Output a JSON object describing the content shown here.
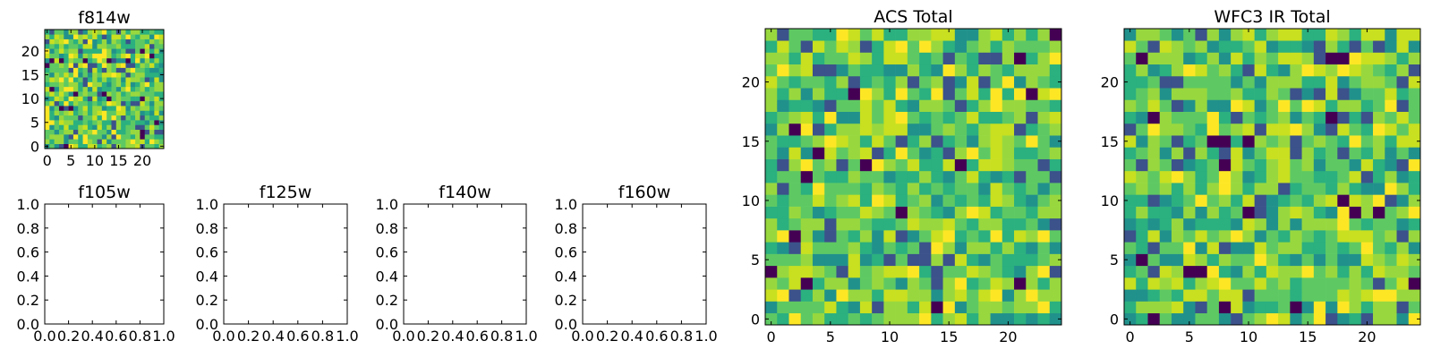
{
  "chart_data": [
    {
      "type": "heatmap",
      "title": "f814w",
      "grid_size": [
        25,
        25
      ],
      "xlim": [
        -0.5,
        24.5
      ],
      "ylim": [
        -0.5,
        24.5
      ],
      "xticks": [
        0,
        5,
        10,
        15,
        20
      ],
      "yticks": [
        0,
        5,
        10,
        15,
        20
      ],
      "xtick_labels": [
        "0",
        "5",
        "10",
        "15",
        "20"
      ],
      "ytick_labels": [
        "0",
        "5",
        "10",
        "15",
        "20"
      ],
      "colormap": "viridis",
      "seed": 814
    },
    {
      "type": "heatmap",
      "title": "f105w",
      "empty": true,
      "xlim": [
        0,
        1
      ],
      "ylim": [
        0,
        1
      ],
      "xtick_labels": [
        "0.0",
        "0.2",
        "0.4",
        "0.6",
        "0.8",
        "1.0"
      ],
      "ytick_labels": [
        "0.0",
        "0.2",
        "0.4",
        "0.6",
        "0.8",
        "1.0"
      ]
    },
    {
      "type": "heatmap",
      "title": "f125w",
      "empty": true,
      "xlim": [
        0,
        1
      ],
      "ylim": [
        0,
        1
      ],
      "xtick_labels": [
        "0.0",
        "0.2",
        "0.4",
        "0.6",
        "0.8",
        "1.0"
      ],
      "ytick_labels": [
        "0.0",
        "0.2",
        "0.4",
        "0.6",
        "0.8",
        "1.0"
      ]
    },
    {
      "type": "heatmap",
      "title": "f140w",
      "empty": true,
      "xlim": [
        0,
        1
      ],
      "ylim": [
        0,
        1
      ],
      "xtick_labels": [
        "0.0",
        "0.2",
        "0.4",
        "0.6",
        "0.8",
        "1.0"
      ],
      "ytick_labels": [
        "0.0",
        "0.2",
        "0.4",
        "0.6",
        "0.8",
        "1.0"
      ]
    },
    {
      "type": "heatmap",
      "title": "f160w",
      "empty": true,
      "xlim": [
        0,
        1
      ],
      "ylim": [
        0,
        1
      ],
      "xtick_labels": [
        "0.0",
        "0.2",
        "0.4",
        "0.6",
        "0.8",
        "1.0"
      ],
      "ytick_labels": [
        "0.0",
        "0.2",
        "0.4",
        "0.6",
        "0.8",
        "1.0"
      ]
    },
    {
      "type": "heatmap",
      "title": "ACS Total",
      "grid_size": [
        25,
        25
      ],
      "xlim": [
        -0.5,
        24.5
      ],
      "ylim": [
        -0.5,
        24.5
      ],
      "xticks": [
        0,
        5,
        10,
        15,
        20
      ],
      "yticks": [
        0,
        5,
        10,
        15,
        20
      ],
      "xtick_labels": [
        "0",
        "5",
        "10",
        "15",
        "20"
      ],
      "ytick_labels": [
        "0",
        "5",
        "10",
        "15",
        "20"
      ],
      "colormap": "viridis",
      "seed": 4242
    },
    {
      "type": "heatmap",
      "title": "WFC3 IR Total",
      "grid_size": [
        25,
        25
      ],
      "xlim": [
        -0.5,
        24.5
      ],
      "ylim": [
        -0.5,
        24.5
      ],
      "xticks": [
        0,
        5,
        10,
        15,
        20
      ],
      "yticks": [
        0,
        5,
        10,
        15,
        20
      ],
      "xtick_labels": [
        "0",
        "5",
        "10",
        "15",
        "20"
      ],
      "ytick_labels": [
        "0",
        "5",
        "10",
        "15",
        "20"
      ],
      "colormap": "viridis",
      "seed": 3131
    }
  ]
}
